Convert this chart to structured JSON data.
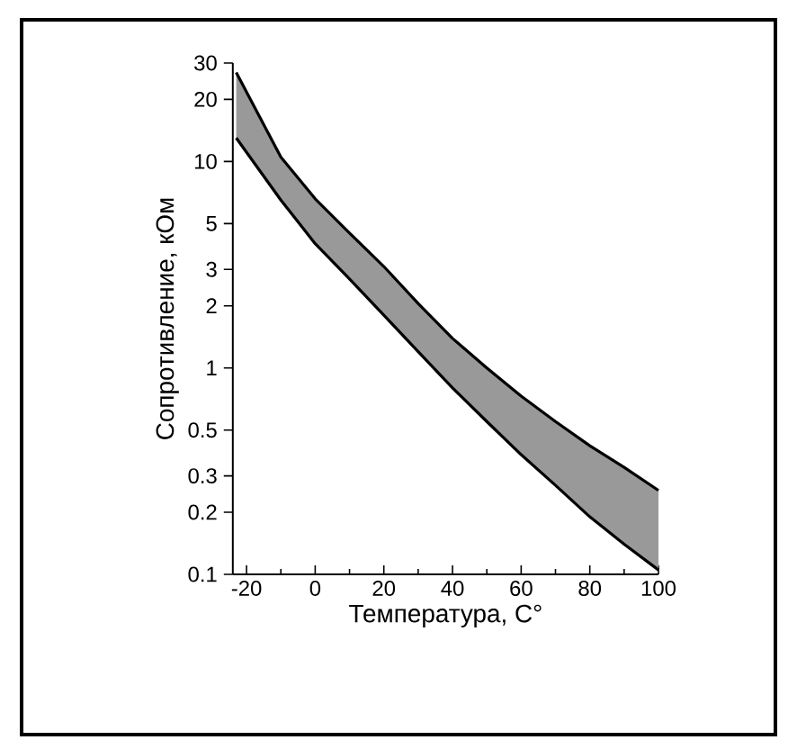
{
  "chart_data": {
    "type": "line",
    "xlabel": "Температура, C°",
    "ylabel": "Сопротивление, кОм",
    "log": "y",
    "xlim": [
      -24,
      100
    ],
    "ylim": [
      0.1,
      30
    ],
    "xticks": [
      -20,
      0,
      20,
      40,
      60,
      80,
      100
    ],
    "yticks": [
      0.1,
      0.2,
      0.3,
      0.5,
      1,
      2,
      3,
      5,
      10,
      20,
      30
    ],
    "series": [
      {
        "color": "#000000",
        "x": [
          -23,
          -10,
          0,
          10,
          20,
          30,
          40,
          50,
          60,
          70,
          80,
          90,
          100
        ],
        "values": [
          27,
          10.5,
          6.6,
          4.5,
          3.1,
          2.05,
          1.39,
          1.0,
          0.73,
          0.55,
          0.42,
          0.33,
          0.255
        ],
        "lower": [
          13,
          6.5,
          4.0,
          2.7,
          1.8,
          1.2,
          0.8,
          0.55,
          0.38,
          0.27,
          0.19,
          0.14,
          0.105
        ],
        "upper": [
          27,
          10.5,
          6.6,
          4.5,
          3.1,
          2.05,
          1.39,
          1.0,
          0.73,
          0.55,
          0.42,
          0.33,
          0.255
        ]
      },
      {
        "color": "#000000",
        "x": [
          -23,
          -10,
          0,
          10,
          20,
          30,
          40,
          50,
          60,
          70,
          80,
          90,
          100
        ],
        "values": [
          13,
          6.5,
          4.0,
          2.7,
          1.8,
          1.2,
          0.8,
          0.55,
          0.38,
          0.27,
          0.19,
          0.14,
          0.105
        ]
      }
    ]
  }
}
